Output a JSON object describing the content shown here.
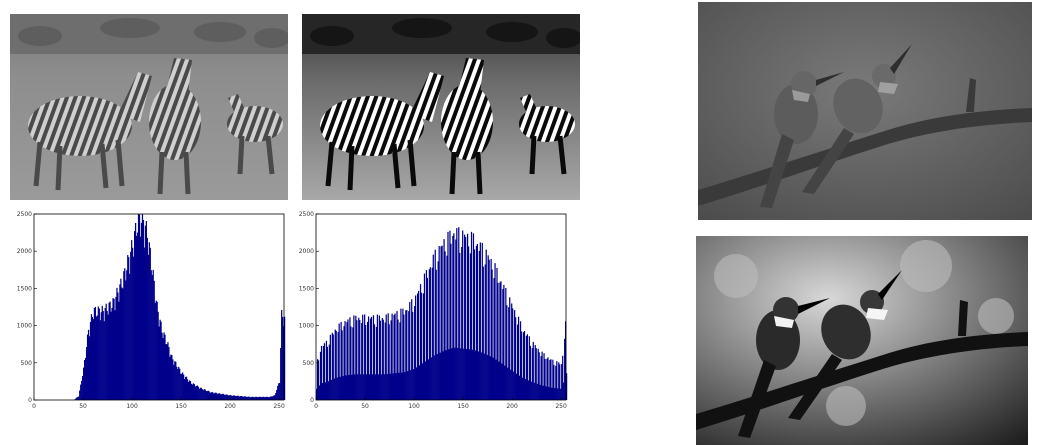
{
  "figure": {
    "photos": [
      {
        "id": "zebra-original",
        "subject": "zebras"
      },
      {
        "id": "zebra-equalized",
        "subject": "zebras"
      },
      {
        "id": "bird-original",
        "subject": "birds-on-branch"
      },
      {
        "id": "bird-equalized",
        "subject": "birds-on-branch"
      }
    ],
    "colors": {
      "bar": "#00008b",
      "axis": "#000000",
      "page": "#ffffff"
    }
  },
  "chart_data": [
    {
      "type": "bar",
      "title": "",
      "xlabel": "",
      "ylabel": "",
      "xlim": [
        0,
        255
      ],
      "ylim": [
        0,
        2500
      ],
      "x_ticks": [
        "0",
        "50",
        "100",
        "150",
        "200",
        "250"
      ],
      "y_ticks": [
        "0",
        "500",
        "1000",
        "1500",
        "2000",
        "2500"
      ],
      "grid": false,
      "legend": "none",
      "series": [
        {
          "values_profile": {
            "x": [
              0,
              40,
              45,
              50,
              55,
              60,
              65,
              70,
              80,
              90,
              100,
              105,
              110,
              115,
              120,
              125,
              130,
              135,
              140,
              150,
              160,
              170,
              180,
              190,
              200,
              210,
              220,
              230,
              240,
              245,
              250,
              252,
              255
            ],
            "y": [
              0,
              0,
              50,
              400,
              900,
              1150,
              1150,
              1150,
              1250,
              1550,
              2000,
              2300,
              2350,
              2150,
              1700,
              1200,
              900,
              750,
              550,
              350,
              220,
              150,
              100,
              80,
              60,
              50,
              40,
              40,
              40,
              60,
              250,
              1100,
              1050
            ]
          }
        }
      ]
    },
    {
      "type": "bar",
      "title": "",
      "xlabel": "",
      "ylabel": "",
      "xlim": [
        0,
        255
      ],
      "ylim": [
        0,
        2500
      ],
      "x_ticks": [
        "0",
        "50",
        "100",
        "150",
        "200",
        "250"
      ],
      "y_ticks": [
        "0",
        "500",
        "1000",
        "1500",
        "2000",
        "2500"
      ],
      "grid": false,
      "legend": "none",
      "series": [
        {
          "values_profile": {
            "x": [
              0,
              5,
              10,
              20,
              30,
              40,
              50,
              60,
              70,
              80,
              90,
              100,
              110,
              120,
              130,
              140,
              150,
              160,
              170,
              180,
              190,
              200,
              210,
              220,
              230,
              240,
              250,
              255
            ],
            "y": [
              500,
              750,
              800,
              1000,
              1100,
              1150,
              1150,
              1150,
              1150,
              1200,
              1250,
              1400,
              1700,
              2000,
              2200,
              2350,
              2300,
              2250,
              2100,
              1900,
              1600,
              1300,
              1000,
              800,
              650,
              550,
              500,
              1200
            ]
          }
        }
      ]
    }
  ]
}
